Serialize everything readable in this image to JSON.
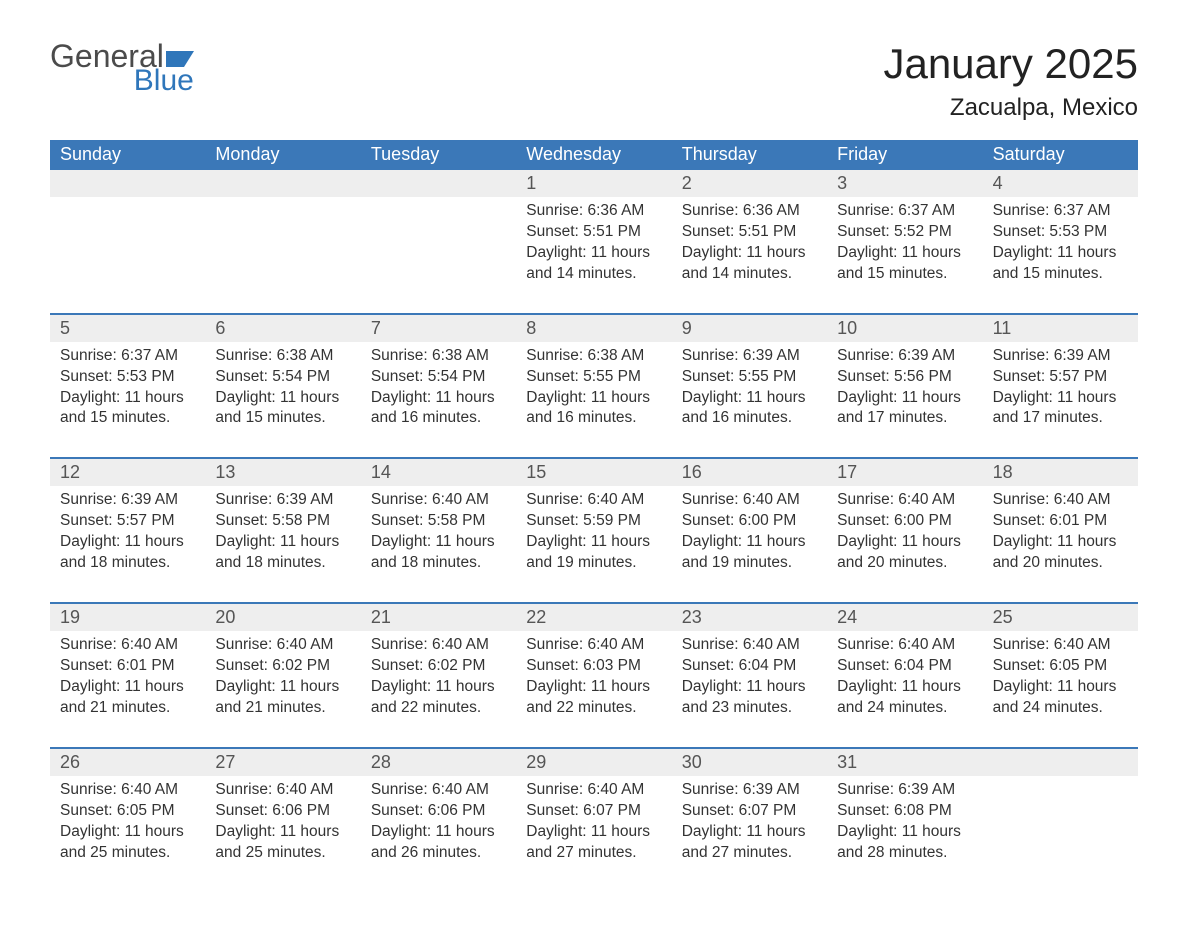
{
  "logo": {
    "general": "General",
    "blue": "Blue"
  },
  "title": "January 2025",
  "location": "Zacualpa, Mexico",
  "colors": {
    "header_bg": "#3b78b8",
    "header_text": "#ffffff",
    "row_stripe": "#eeeeee",
    "border": "#3b78b8",
    "text": "#333333",
    "daynum": "#555555",
    "background": "#ffffff",
    "logo_gray": "#4b4b4b",
    "logo_blue": "#2f76ba"
  },
  "weekdays": [
    "Sunday",
    "Monday",
    "Tuesday",
    "Wednesday",
    "Thursday",
    "Friday",
    "Saturday"
  ],
  "weeks": [
    [
      null,
      null,
      null,
      {
        "n": "1",
        "sr": "Sunrise: 6:36 AM",
        "ss": "Sunset: 5:51 PM",
        "dl": "Daylight: 11 hours and 14 minutes."
      },
      {
        "n": "2",
        "sr": "Sunrise: 6:36 AM",
        "ss": "Sunset: 5:51 PM",
        "dl": "Daylight: 11 hours and 14 minutes."
      },
      {
        "n": "3",
        "sr": "Sunrise: 6:37 AM",
        "ss": "Sunset: 5:52 PM",
        "dl": "Daylight: 11 hours and 15 minutes."
      },
      {
        "n": "4",
        "sr": "Sunrise: 6:37 AM",
        "ss": "Sunset: 5:53 PM",
        "dl": "Daylight: 11 hours and 15 minutes."
      }
    ],
    [
      {
        "n": "5",
        "sr": "Sunrise: 6:37 AM",
        "ss": "Sunset: 5:53 PM",
        "dl": "Daylight: 11 hours and 15 minutes."
      },
      {
        "n": "6",
        "sr": "Sunrise: 6:38 AM",
        "ss": "Sunset: 5:54 PM",
        "dl": "Daylight: 11 hours and 15 minutes."
      },
      {
        "n": "7",
        "sr": "Sunrise: 6:38 AM",
        "ss": "Sunset: 5:54 PM",
        "dl": "Daylight: 11 hours and 16 minutes."
      },
      {
        "n": "8",
        "sr": "Sunrise: 6:38 AM",
        "ss": "Sunset: 5:55 PM",
        "dl": "Daylight: 11 hours and 16 minutes."
      },
      {
        "n": "9",
        "sr": "Sunrise: 6:39 AM",
        "ss": "Sunset: 5:55 PM",
        "dl": "Daylight: 11 hours and 16 minutes."
      },
      {
        "n": "10",
        "sr": "Sunrise: 6:39 AM",
        "ss": "Sunset: 5:56 PM",
        "dl": "Daylight: 11 hours and 17 minutes."
      },
      {
        "n": "11",
        "sr": "Sunrise: 6:39 AM",
        "ss": "Sunset: 5:57 PM",
        "dl": "Daylight: 11 hours and 17 minutes."
      }
    ],
    [
      {
        "n": "12",
        "sr": "Sunrise: 6:39 AM",
        "ss": "Sunset: 5:57 PM",
        "dl": "Daylight: 11 hours and 18 minutes."
      },
      {
        "n": "13",
        "sr": "Sunrise: 6:39 AM",
        "ss": "Sunset: 5:58 PM",
        "dl": "Daylight: 11 hours and 18 minutes."
      },
      {
        "n": "14",
        "sr": "Sunrise: 6:40 AM",
        "ss": "Sunset: 5:58 PM",
        "dl": "Daylight: 11 hours and 18 minutes."
      },
      {
        "n": "15",
        "sr": "Sunrise: 6:40 AM",
        "ss": "Sunset: 5:59 PM",
        "dl": "Daylight: 11 hours and 19 minutes."
      },
      {
        "n": "16",
        "sr": "Sunrise: 6:40 AM",
        "ss": "Sunset: 6:00 PM",
        "dl": "Daylight: 11 hours and 19 minutes."
      },
      {
        "n": "17",
        "sr": "Sunrise: 6:40 AM",
        "ss": "Sunset: 6:00 PM",
        "dl": "Daylight: 11 hours and 20 minutes."
      },
      {
        "n": "18",
        "sr": "Sunrise: 6:40 AM",
        "ss": "Sunset: 6:01 PM",
        "dl": "Daylight: 11 hours and 20 minutes."
      }
    ],
    [
      {
        "n": "19",
        "sr": "Sunrise: 6:40 AM",
        "ss": "Sunset: 6:01 PM",
        "dl": "Daylight: 11 hours and 21 minutes."
      },
      {
        "n": "20",
        "sr": "Sunrise: 6:40 AM",
        "ss": "Sunset: 6:02 PM",
        "dl": "Daylight: 11 hours and 21 minutes."
      },
      {
        "n": "21",
        "sr": "Sunrise: 6:40 AM",
        "ss": "Sunset: 6:02 PM",
        "dl": "Daylight: 11 hours and 22 minutes."
      },
      {
        "n": "22",
        "sr": "Sunrise: 6:40 AM",
        "ss": "Sunset: 6:03 PM",
        "dl": "Daylight: 11 hours and 22 minutes."
      },
      {
        "n": "23",
        "sr": "Sunrise: 6:40 AM",
        "ss": "Sunset: 6:04 PM",
        "dl": "Daylight: 11 hours and 23 minutes."
      },
      {
        "n": "24",
        "sr": "Sunrise: 6:40 AM",
        "ss": "Sunset: 6:04 PM",
        "dl": "Daylight: 11 hours and 24 minutes."
      },
      {
        "n": "25",
        "sr": "Sunrise: 6:40 AM",
        "ss": "Sunset: 6:05 PM",
        "dl": "Daylight: 11 hours and 24 minutes."
      }
    ],
    [
      {
        "n": "26",
        "sr": "Sunrise: 6:40 AM",
        "ss": "Sunset: 6:05 PM",
        "dl": "Daylight: 11 hours and 25 minutes."
      },
      {
        "n": "27",
        "sr": "Sunrise: 6:40 AM",
        "ss": "Sunset: 6:06 PM",
        "dl": "Daylight: 11 hours and 25 minutes."
      },
      {
        "n": "28",
        "sr": "Sunrise: 6:40 AM",
        "ss": "Sunset: 6:06 PM",
        "dl": "Daylight: 11 hours and 26 minutes."
      },
      {
        "n": "29",
        "sr": "Sunrise: 6:40 AM",
        "ss": "Sunset: 6:07 PM",
        "dl": "Daylight: 11 hours and 27 minutes."
      },
      {
        "n": "30",
        "sr": "Sunrise: 6:39 AM",
        "ss": "Sunset: 6:07 PM",
        "dl": "Daylight: 11 hours and 27 minutes."
      },
      {
        "n": "31",
        "sr": "Sunrise: 6:39 AM",
        "ss": "Sunset: 6:08 PM",
        "dl": "Daylight: 11 hours and 28 minutes."
      },
      null
    ]
  ]
}
